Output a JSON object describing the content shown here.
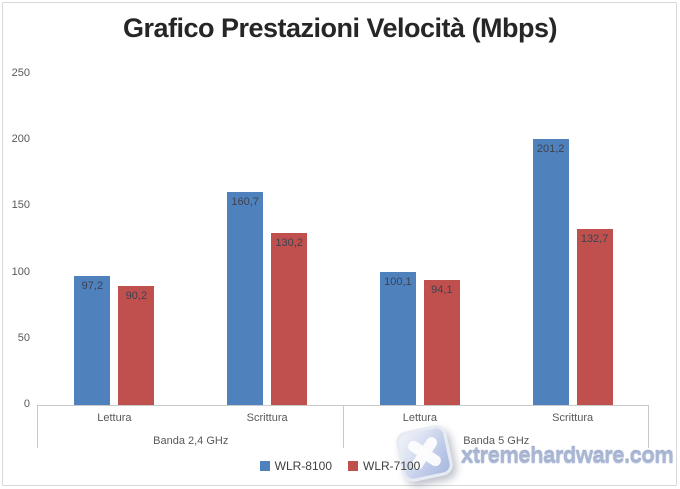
{
  "title": "Grafico Prestazioni Velocità (Mbps)",
  "colors": {
    "series1": "#4F81BD",
    "series2": "#C0504D",
    "axis_line": "#C9C9C9",
    "tick_text": "#595959",
    "data_label_text": "#3D4250",
    "title_text": "#262626",
    "watermark_text": "#A9B7D5"
  },
  "chart_data": {
    "type": "bar",
    "title": "Grafico Prestazioni Velocità (Mbps)",
    "categories": [
      "Lettura",
      "Scrittura",
      "Lettura",
      "Scrittura"
    ],
    "groups": [
      {
        "label": "Banda 2,4 GHz",
        "categories": [
          "Lettura",
          "Scrittura"
        ]
      },
      {
        "label": "Banda 5 GHz",
        "categories": [
          "Lettura",
          "Scrittura"
        ]
      }
    ],
    "series": [
      {
        "name": "WLR-8100",
        "color": "#4F81BD",
        "values": [
          97.2,
          160.7,
          100.1,
          201.2
        ],
        "labels": [
          "97,2",
          "160,7",
          "100,1",
          "201,2"
        ]
      },
      {
        "name": "WLR-7100",
        "color": "#C0504D",
        "values": [
          90.2,
          130.2,
          94.1,
          132.7
        ],
        "labels": [
          "90,2",
          "130,2",
          "94,1",
          "132,7"
        ]
      }
    ],
    "y_ticks": [
      0,
      50,
      100,
      150,
      200,
      250
    ],
    "ylim": [
      0,
      250
    ],
    "xlabel": "",
    "ylabel": "",
    "grid": false,
    "legend_position": "bottom"
  },
  "legend": {
    "items": [
      {
        "label": "WLR-8100",
        "color": "#4F81BD"
      },
      {
        "label": "WLR-7100",
        "color": "#C0504D"
      }
    ]
  },
  "watermark": {
    "text": "xtremehardware.com",
    "icon": "x-logo"
  }
}
